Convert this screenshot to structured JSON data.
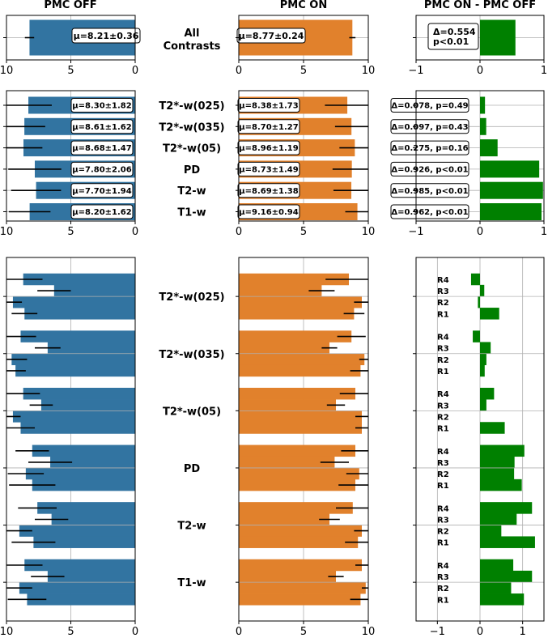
{
  "colors": {
    "off": "#3274a1",
    "on": "#e1812c",
    "diff": "#008000",
    "grid": "#b0b0b0",
    "axis": "#000000",
    "errorbar": "#000000"
  },
  "column_titles": [
    "PMC OFF",
    "PMC ON",
    "PMC ON - PMC OFF"
  ],
  "contrasts": [
    "T2*-w(025)",
    "T2*-w(035)",
    "T2*-w(05)",
    "PD",
    "T2-w",
    "T1-w"
  ],
  "chart_data": [
    {
      "name": "all-contrasts",
      "type": "bar",
      "orientation": "horizontal",
      "center_label": "All\nContrasts",
      "off": {
        "value": 8.21,
        "err": 0.36,
        "label": "μ=8.21±0.36",
        "xlim": [
          10,
          0
        ],
        "xticks": [
          "10",
          "5",
          "0"
        ],
        "grid": true
      },
      "on": {
        "value": 8.77,
        "err": 0.24,
        "label": "μ=8.77±0.24",
        "xlim": [
          0,
          10
        ],
        "xticks": [
          "0",
          "5",
          "10"
        ],
        "grid": true
      },
      "diff": {
        "value": 0.554,
        "label": "Δ=0.554\np<0.01",
        "xlim": [
          -1,
          1
        ],
        "xticks": [
          "−1",
          "0",
          "1"
        ],
        "grid": true
      }
    },
    {
      "name": "per-contrast",
      "type": "bar",
      "orientation": "horizontal",
      "categories": [
        "T2*-w(025)",
        "T2*-w(035)",
        "T2*-w(05)",
        "PD",
        "T2-w",
        "T1-w"
      ],
      "off": {
        "values": [
          8.3,
          8.61,
          8.68,
          7.8,
          7.7,
          8.2
        ],
        "err": [
          1.82,
          1.62,
          1.47,
          2.06,
          1.94,
          1.62
        ],
        "labels": [
          "μ=8.30±1.82",
          "μ=8.61±1.62",
          "μ=8.68±1.47",
          "μ=7.80±2.06",
          "μ=7.70±1.94",
          "μ=8.20±1.62"
        ],
        "xlim": [
          10,
          0
        ],
        "xticks": [
          "10",
          "5",
          "0"
        ]
      },
      "on": {
        "values": [
          8.38,
          8.7,
          8.96,
          8.73,
          8.69,
          9.16
        ],
        "err": [
          1.73,
          1.27,
          1.19,
          1.49,
          1.38,
          0.94
        ],
        "labels": [
          "μ=8.38±1.73",
          "μ=8.70±1.27",
          "μ=8.96±1.19",
          "μ=8.73±1.49",
          "μ=8.69±1.38",
          "μ=9.16±0.94"
        ],
        "xlim": [
          0,
          10
        ],
        "xticks": [
          "0",
          "5",
          "10"
        ]
      },
      "diff": {
        "values": [
          0.078,
          0.097,
          0.275,
          0.926,
          0.985,
          0.962
        ],
        "labels": [
          "Δ=0.078, p=0.49",
          "Δ=0.097, p=0.43",
          "Δ=0.275, p=0.16",
          "Δ=0.926, p<0.01",
          "Δ=0.985, p<0.01",
          "Δ=0.962, p<0.01"
        ],
        "xlim": [
          -1,
          1
        ],
        "xticks": [
          "−1",
          "0",
          "1"
        ]
      }
    },
    {
      "name": "per-reader",
      "type": "bar",
      "orientation": "horizontal",
      "groups": [
        "T2*-w(025)",
        "T2*-w(035)",
        "T2*-w(05)",
        "PD",
        "T2-w",
        "T1-w"
      ],
      "readers": [
        "R4",
        "R3",
        "R2",
        "R1"
      ],
      "off": {
        "values": [
          [
            8.7,
            6.3,
            9.5,
            8.6
          ],
          [
            8.9,
            6.8,
            9.6,
            9.3
          ],
          [
            8.7,
            7.3,
            9.5,
            8.9
          ],
          [
            8.0,
            6.6,
            8.5,
            8.0
          ],
          [
            7.6,
            6.5,
            9.0,
            7.9
          ],
          [
            8.6,
            6.8,
            9.0,
            8.4
          ]
        ],
        "err": [
          [
            1.5,
            1.3,
            0.7,
            1.0
          ],
          [
            1.2,
            1.0,
            1.2,
            0.8
          ],
          [
            1.3,
            0.9,
            0.6,
            1.1
          ],
          [
            1.3,
            1.7,
            1.4,
            1.8
          ],
          [
            1.5,
            1.3,
            1.0,
            1.7
          ],
          [
            1.4,
            1.3,
            1.0,
            1.5
          ]
        ],
        "xlim": [
          10,
          0
        ],
        "xticks": [
          "10",
          "5",
          "0"
        ]
      },
      "on": {
        "values": [
          [
            8.5,
            6.4,
            9.5,
            8.9
          ],
          [
            8.7,
            7.0,
            9.7,
            9.4
          ],
          [
            9.0,
            7.5,
            9.5,
            9.5
          ],
          [
            9.0,
            7.4,
            9.3,
            9.0
          ],
          [
            8.8,
            7.0,
            9.5,
            9.2
          ],
          [
            9.5,
            7.5,
            9.8,
            9.4
          ]
        ],
        "err": [
          [
            1.8,
            1.0,
            0.6,
            0.8
          ],
          [
            1.1,
            0.6,
            0.4,
            0.8
          ],
          [
            1.2,
            0.7,
            0.5,
            0.5
          ],
          [
            1.1,
            1.1,
            1.0,
            1.3
          ],
          [
            1.3,
            0.8,
            0.6,
            1.0
          ],
          [
            0.5,
            0.6,
            0.3,
            0.8
          ]
        ],
        "xlim": [
          0,
          10
        ],
        "xticks": [
          "0",
          "5",
          "10"
        ]
      },
      "diff": {
        "values": [
          [
            -0.21,
            0.1,
            -0.05,
            0.45
          ],
          [
            -0.17,
            0.25,
            0.15,
            0.11
          ],
          [
            0.33,
            0.15,
            0.0,
            0.58
          ],
          [
            1.04,
            0.81,
            0.8,
            0.98
          ],
          [
            1.22,
            0.86,
            0.5,
            1.29
          ],
          [
            0.78,
            1.22,
            0.73,
            1.03
          ]
        ],
        "xlim": [
          -1.5,
          1.5
        ],
        "xticks": [
          "−1",
          "0",
          "1"
        ]
      }
    }
  ]
}
